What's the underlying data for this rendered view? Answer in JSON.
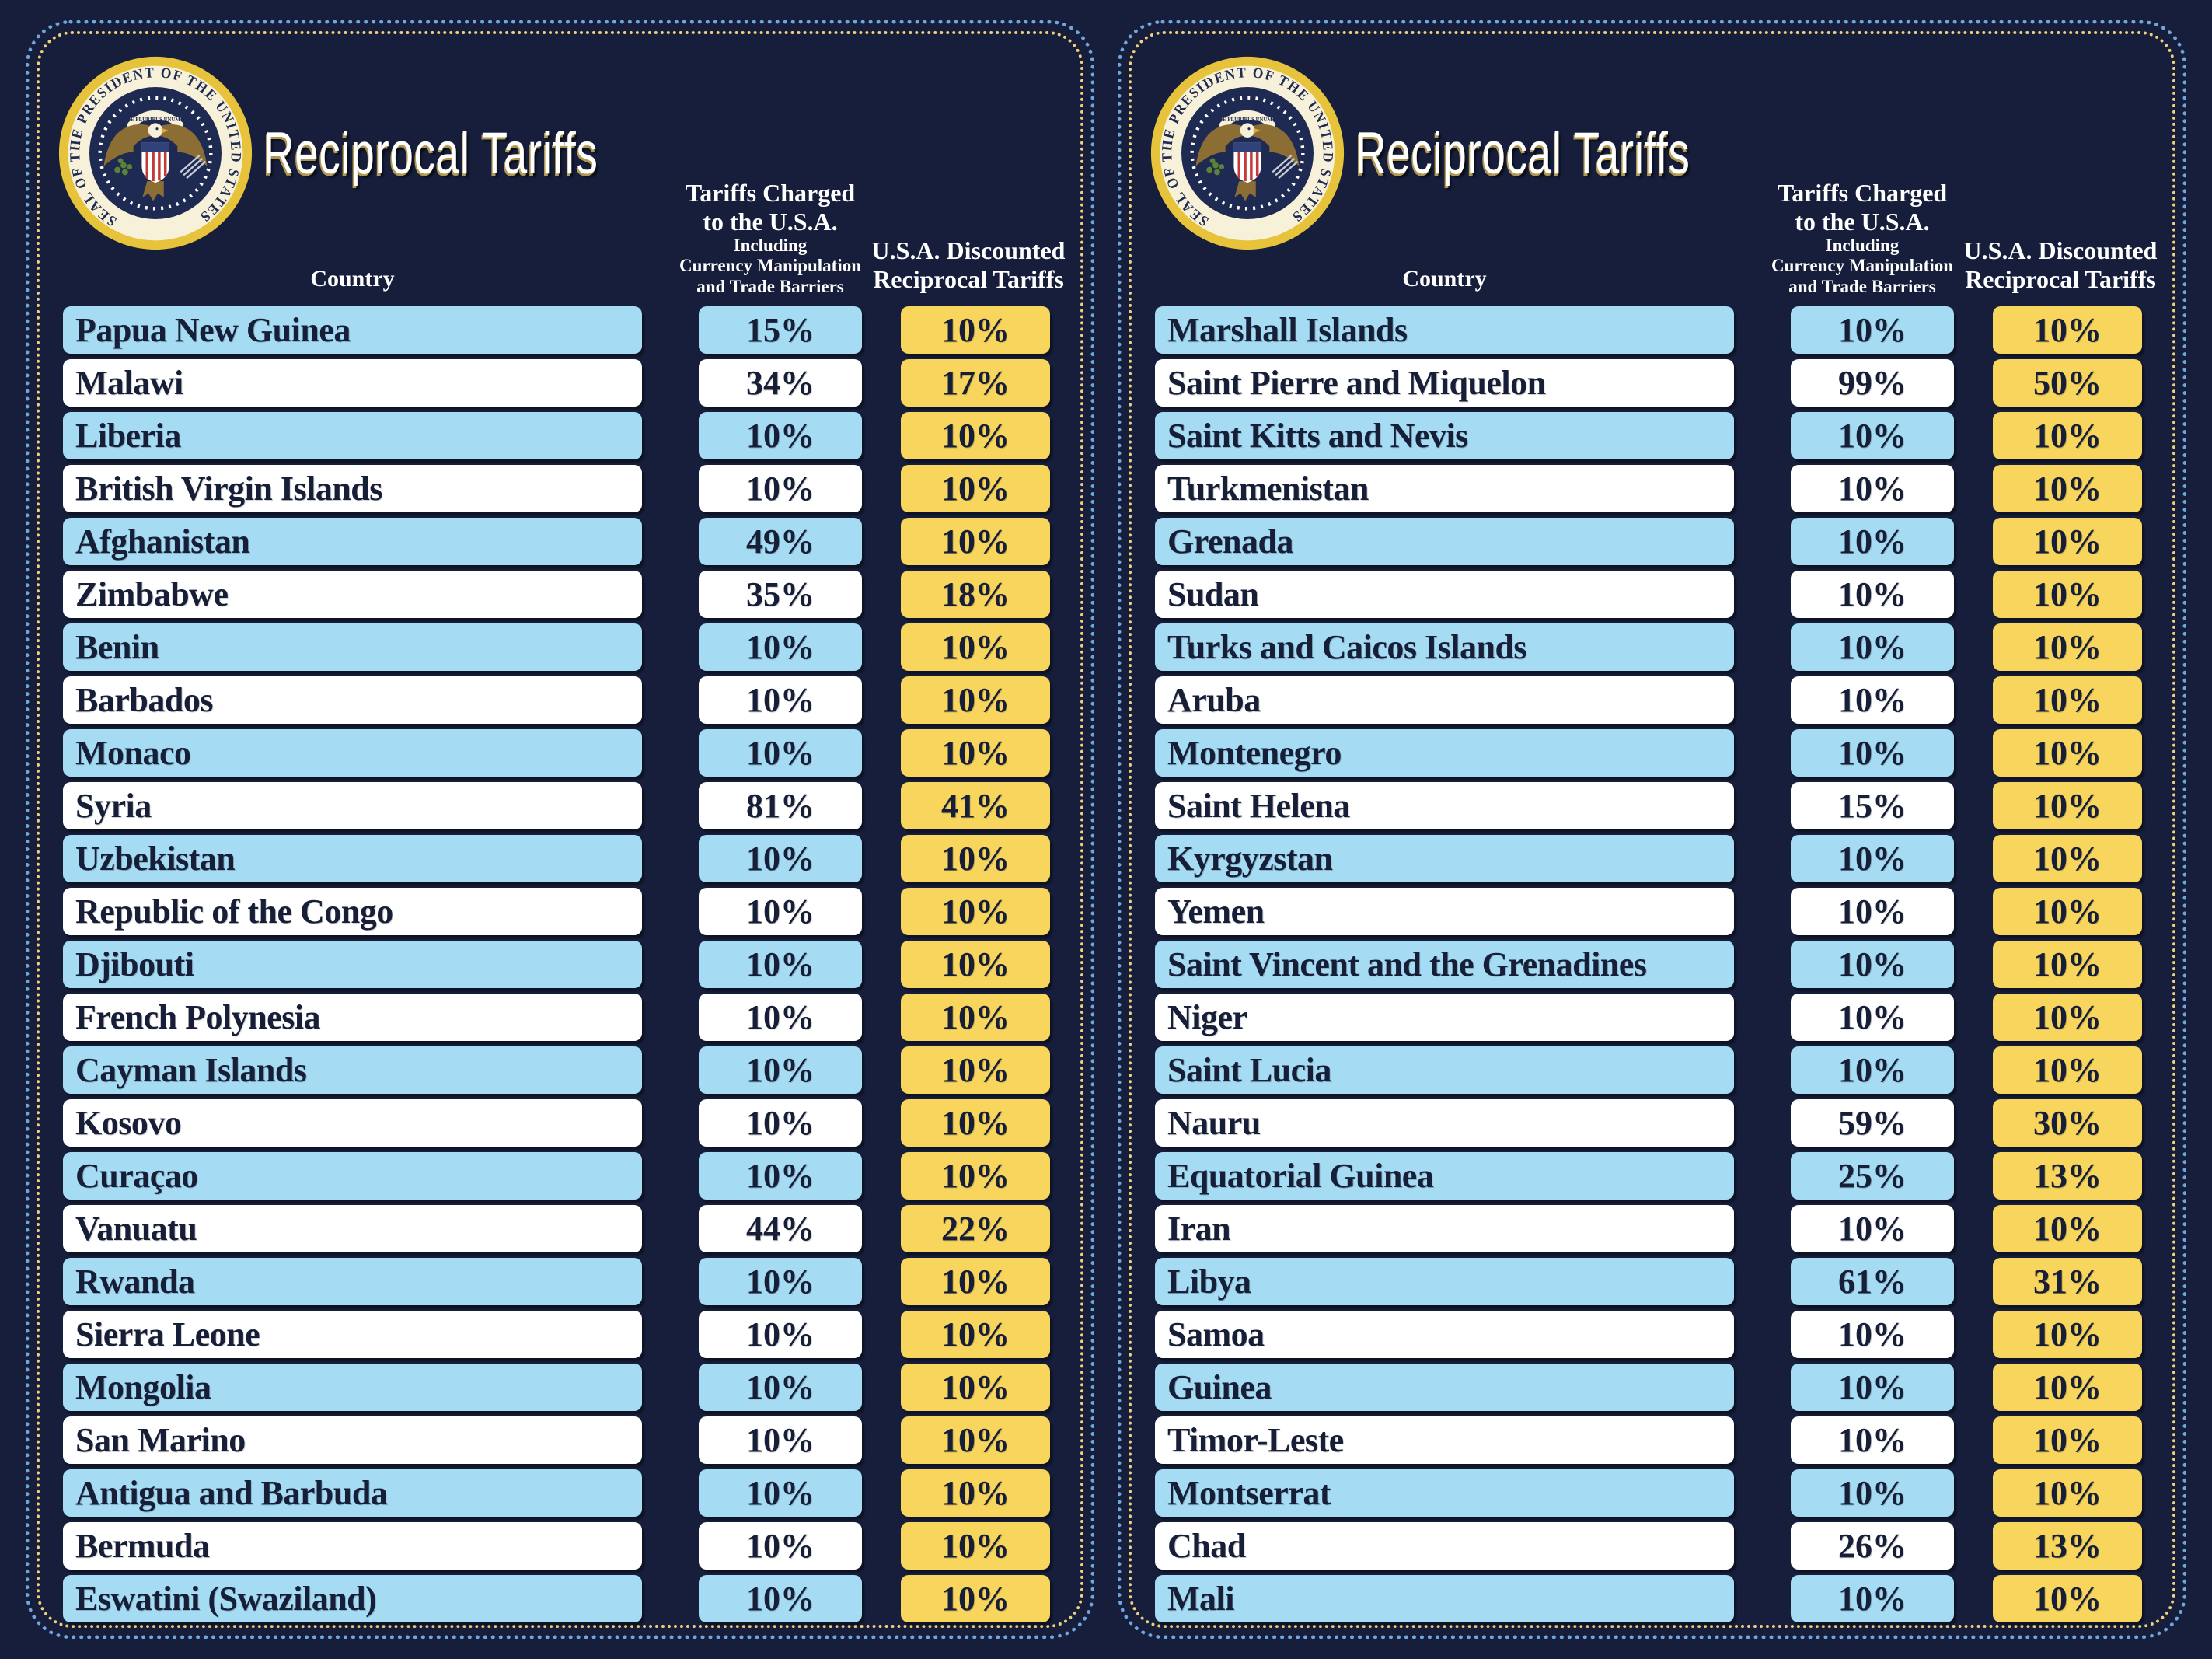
{
  "colors": {
    "background": "#161E3B",
    "outer_dot_border": "#6FA6DC",
    "inner_dot_border": "#EDD07C",
    "row_blue": "#A5DBF3",
    "row_white": "#FFFFFF",
    "discount_yellow": "#F8D65E",
    "cell_text": "#171F38",
    "header_text": "#FFFFFF",
    "seal_gold": "#E7C33C",
    "seal_cream": "#F8F1D9",
    "seal_navy": "#1E2A52"
  },
  "panels": [
    {
      "title": "Reciprocal Tariffs",
      "seal_text": "SEAL OF THE PRESIDENT OF THE UNITED STATES",
      "seal_motto": "E PLURIBUS UNUM",
      "headers": {
        "country": "Country",
        "charged_line1": "Tariffs Charged",
        "charged_line2": "to the U.S.A.",
        "charged_sub1": "Including",
        "charged_sub2": "Currency Manipulation",
        "charged_sub3": "and Trade Barriers",
        "discounted_line1": "U.S.A. Discounted",
        "discounted_line2": "Reciprocal Tariffs"
      }
    },
    {
      "title": "Reciprocal Tariffs",
      "seal_text": "SEAL OF THE PRESIDENT OF THE UNITED STATES",
      "seal_motto": "E PLURIBUS UNUM",
      "headers": {
        "country": "Country",
        "charged_line1": "Tariffs Charged",
        "charged_line2": "to the U.S.A.",
        "charged_sub1": "Including",
        "charged_sub2": "Currency Manipulation",
        "charged_sub3": "and Trade Barriers",
        "discounted_line1": "U.S.A. Discounted",
        "discounted_line2": "Reciprocal Tariffs"
      }
    }
  ],
  "chart_data": [
    {
      "type": "table",
      "title": "Reciprocal Tariffs",
      "columns": [
        "Country",
        "Tariffs Charged to the U.S.A. Including Currency Manipulation and Trade Barriers",
        "U.S.A. Discounted Reciprocal Tariffs"
      ],
      "rows": [
        [
          "Papua New Guinea",
          "15%",
          "10%"
        ],
        [
          "Malawi",
          "34%",
          "17%"
        ],
        [
          "Liberia",
          "10%",
          "10%"
        ],
        [
          "British Virgin Islands",
          "10%",
          "10%"
        ],
        [
          "Afghanistan",
          "49%",
          "10%"
        ],
        [
          "Zimbabwe",
          "35%",
          "18%"
        ],
        [
          "Benin",
          "10%",
          "10%"
        ],
        [
          "Barbados",
          "10%",
          "10%"
        ],
        [
          "Monaco",
          "10%",
          "10%"
        ],
        [
          "Syria",
          "81%",
          "41%"
        ],
        [
          "Uzbekistan",
          "10%",
          "10%"
        ],
        [
          "Republic of the Congo",
          "10%",
          "10%"
        ],
        [
          "Djibouti",
          "10%",
          "10%"
        ],
        [
          "French Polynesia",
          "10%",
          "10%"
        ],
        [
          "Cayman Islands",
          "10%",
          "10%"
        ],
        [
          "Kosovo",
          "10%",
          "10%"
        ],
        [
          "Curaçao",
          "10%",
          "10%"
        ],
        [
          "Vanuatu",
          "44%",
          "22%"
        ],
        [
          "Rwanda",
          "10%",
          "10%"
        ],
        [
          "Sierra Leone",
          "10%",
          "10%"
        ],
        [
          "Mongolia",
          "10%",
          "10%"
        ],
        [
          "San Marino",
          "10%",
          "10%"
        ],
        [
          "Antigua and Barbuda",
          "10%",
          "10%"
        ],
        [
          "Bermuda",
          "10%",
          "10%"
        ],
        [
          "Eswatini (Swaziland)",
          "10%",
          "10%"
        ]
      ]
    },
    {
      "type": "table",
      "title": "Reciprocal Tariffs",
      "columns": [
        "Country",
        "Tariffs Charged to the U.S.A. Including Currency Manipulation and Trade Barriers",
        "U.S.A. Discounted Reciprocal Tariffs"
      ],
      "rows": [
        [
          "Marshall Islands",
          "10%",
          "10%"
        ],
        [
          "Saint Pierre and Miquelon",
          "99%",
          "50%"
        ],
        [
          "Saint Kitts and Nevis",
          "10%",
          "10%"
        ],
        [
          "Turkmenistan",
          "10%",
          "10%"
        ],
        [
          "Grenada",
          "10%",
          "10%"
        ],
        [
          "Sudan",
          "10%",
          "10%"
        ],
        [
          "Turks and Caicos Islands",
          "10%",
          "10%"
        ],
        [
          "Aruba",
          "10%",
          "10%"
        ],
        [
          "Montenegro",
          "10%",
          "10%"
        ],
        [
          "Saint Helena",
          "15%",
          "10%"
        ],
        [
          "Kyrgyzstan",
          "10%",
          "10%"
        ],
        [
          "Yemen",
          "10%",
          "10%"
        ],
        [
          "Saint Vincent and the Grenadines",
          "10%",
          "10%"
        ],
        [
          "Niger",
          "10%",
          "10%"
        ],
        [
          "Saint Lucia",
          "10%",
          "10%"
        ],
        [
          "Nauru",
          "59%",
          "30%"
        ],
        [
          "Equatorial Guinea",
          "25%",
          "13%"
        ],
        [
          "Iran",
          "10%",
          "10%"
        ],
        [
          "Libya",
          "61%",
          "31%"
        ],
        [
          "Samoa",
          "10%",
          "10%"
        ],
        [
          "Guinea",
          "10%",
          "10%"
        ],
        [
          "Timor-Leste",
          "10%",
          "10%"
        ],
        [
          "Montserrat",
          "10%",
          "10%"
        ],
        [
          "Chad",
          "26%",
          "13%"
        ],
        [
          "Mali",
          "10%",
          "10%"
        ]
      ]
    }
  ]
}
